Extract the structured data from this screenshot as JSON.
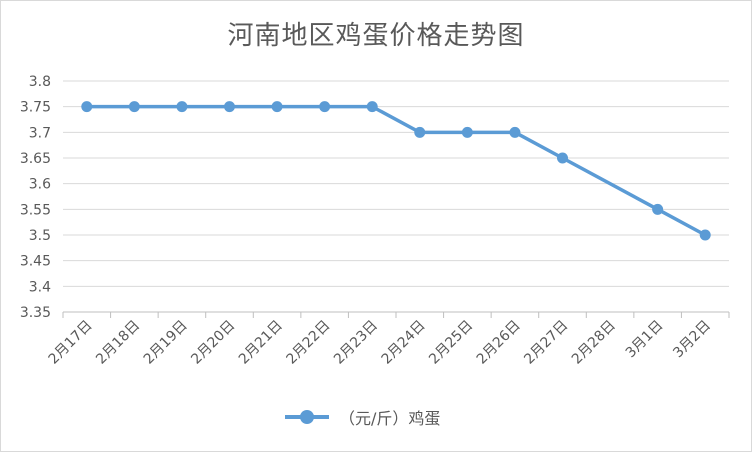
{
  "chart_data": {
    "type": "line",
    "title": "河南地区鸡蛋价格走势图",
    "xlabel": "",
    "ylabel": "",
    "categories": [
      "2月17日",
      "2月18日",
      "2月19日",
      "2月20日",
      "2月21日",
      "2月22日",
      "2月23日",
      "2月24日",
      "2月25日",
      "2月26日",
      "2月27日",
      "2月28日",
      "3月1日",
      "3月2日"
    ],
    "series": [
      {
        "name": "（元/斤）鸡蛋",
        "color": "#5b9bd5",
        "values": [
          3.75,
          3.75,
          3.75,
          3.75,
          3.75,
          3.75,
          3.75,
          3.7,
          3.7,
          3.7,
          3.65,
          null,
          3.55,
          3.5
        ]
      }
    ],
    "ylim": [
      3.35,
      3.8
    ],
    "yticks": [
      "3.35",
      "3.4",
      "3.45",
      "3.5",
      "3.55",
      "3.6",
      "3.65",
      "3.7",
      "3.75",
      "3.8"
    ],
    "grid": true,
    "legend": "bottom"
  }
}
